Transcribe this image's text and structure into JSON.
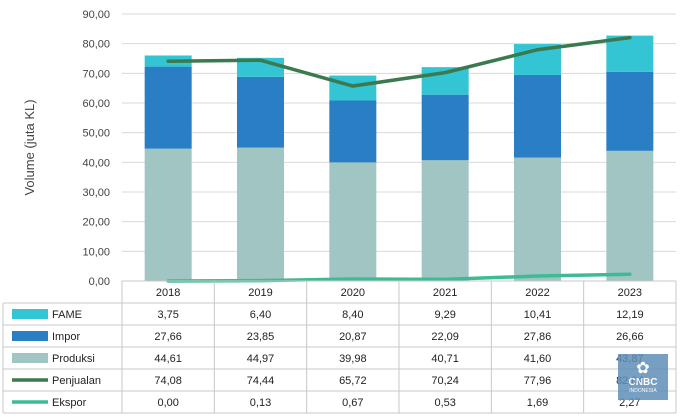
{
  "chart_data": {
    "type": "bar",
    "subtype": "stacked-bar-with-lines-and-data-table",
    "categories": [
      "2018",
      "2019",
      "2020",
      "2021",
      "2022",
      "2023"
    ],
    "ylabel": "Volume (juta KL)",
    "ylim": [
      0,
      90
    ],
    "yticks": [
      "0,00",
      "10,00",
      "20,00",
      "30,00",
      "40,00",
      "50,00",
      "60,00",
      "70,00",
      "80,00",
      "90,00"
    ],
    "grid": true,
    "series": [
      {
        "name": "FAME",
        "kind": "bar",
        "color": "#33c5d3",
        "values": [
          3.75,
          6.4,
          8.4,
          9.29,
          10.41,
          12.19
        ],
        "labels": [
          "3,75",
          "6,40",
          "8,40",
          "9,29",
          "10,41",
          "12,19"
        ]
      },
      {
        "name": "Impor",
        "kind": "bar",
        "color": "#2a7fc4",
        "values": [
          27.66,
          23.85,
          20.87,
          22.09,
          27.86,
          26.66
        ],
        "labels": [
          "27,66",
          "23,85",
          "20,87",
          "22,09",
          "27,86",
          "26,66"
        ]
      },
      {
        "name": "Produksi",
        "kind": "bar",
        "color": "#a0c5c3",
        "values": [
          44.61,
          44.97,
          39.98,
          40.71,
          41.6,
          43.87
        ],
        "labels": [
          "44,61",
          "44,97",
          "39,98",
          "40,71",
          "41,60",
          "43,87"
        ]
      },
      {
        "name": "Penjualan",
        "kind": "line",
        "color": "#3a7a4e",
        "values": [
          74.08,
          74.44,
          65.72,
          70.24,
          77.96,
          82.04
        ],
        "labels": [
          "74,08",
          "74,44",
          "65,72",
          "70,24",
          "77,96",
          "82,04"
        ]
      },
      {
        "name": "Ekspor",
        "kind": "line",
        "color": "#3dbb96",
        "values": [
          0.0,
          0.13,
          0.67,
          0.53,
          1.69,
          2.27
        ],
        "labels": [
          "0,00",
          "0,13",
          "0,67",
          "0,53",
          "1,69",
          "2,27"
        ]
      }
    ]
  },
  "watermark": {
    "brand": "CNBC",
    "sub": "INDONESIA"
  }
}
